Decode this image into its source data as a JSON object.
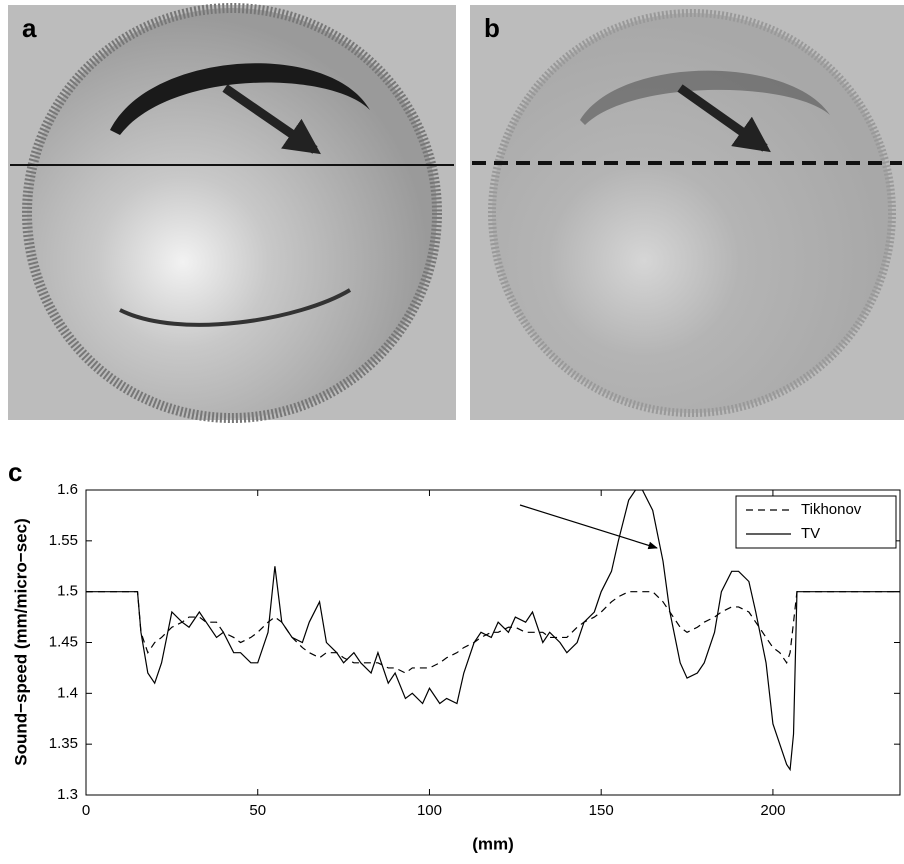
{
  "panel_labels": [
    "a",
    "b",
    "c"
  ],
  "chart_data": {
    "type": "line",
    "xlabel": "(mm)",
    "ylabel": "Sound−speed (mm/micro−sec)",
    "x": [
      0,
      15,
      16,
      18,
      20,
      22,
      25,
      28,
      30,
      33,
      35,
      38,
      40,
      43,
      45,
      48,
      50,
      53,
      55,
      57,
      60,
      63,
      65,
      68,
      70,
      73,
      75,
      78,
      80,
      83,
      85,
      88,
      90,
      93,
      95,
      98,
      100,
      103,
      105,
      108,
      110,
      113,
      115,
      118,
      120,
      123,
      125,
      128,
      130,
      133,
      135,
      138,
      140,
      143,
      145,
      148,
      150,
      153,
      155,
      158,
      160,
      162,
      165,
      168,
      170,
      173,
      175,
      178,
      180,
      183,
      185,
      188,
      190,
      193,
      195,
      198,
      200,
      202,
      204,
      205,
      206,
      207,
      237
    ],
    "series": [
      {
        "name": "Tikhonov",
        "color": "#000000",
        "style": "dashed",
        "values": [
          1.5,
          1.5,
          1.46,
          1.44,
          1.45,
          1.455,
          1.465,
          1.47,
          1.475,
          1.475,
          1.47,
          1.47,
          1.46,
          1.455,
          1.45,
          1.455,
          1.46,
          1.47,
          1.475,
          1.47,
          1.455,
          1.445,
          1.44,
          1.435,
          1.44,
          1.44,
          1.435,
          1.43,
          1.43,
          1.43,
          1.43,
          1.425,
          1.425,
          1.42,
          1.425,
          1.425,
          1.425,
          1.43,
          1.435,
          1.44,
          1.445,
          1.45,
          1.455,
          1.46,
          1.46,
          1.465,
          1.465,
          1.46,
          1.46,
          1.46,
          1.455,
          1.455,
          1.455,
          1.465,
          1.47,
          1.475,
          1.48,
          1.49,
          1.495,
          1.5,
          1.5,
          1.5,
          1.5,
          1.49,
          1.48,
          1.465,
          1.46,
          1.465,
          1.47,
          1.475,
          1.48,
          1.485,
          1.485,
          1.48,
          1.47,
          1.455,
          1.445,
          1.44,
          1.43,
          1.44,
          1.47,
          1.5,
          1.5
        ]
      },
      {
        "name": "TV",
        "color": "#000000",
        "style": "solid",
        "values": [
          1.5,
          1.5,
          1.46,
          1.42,
          1.41,
          1.43,
          1.48,
          1.47,
          1.465,
          1.48,
          1.47,
          1.455,
          1.46,
          1.44,
          1.44,
          1.43,
          1.43,
          1.46,
          1.525,
          1.47,
          1.455,
          1.45,
          1.47,
          1.49,
          1.45,
          1.44,
          1.43,
          1.44,
          1.43,
          1.42,
          1.44,
          1.41,
          1.42,
          1.395,
          1.4,
          1.39,
          1.405,
          1.39,
          1.395,
          1.39,
          1.42,
          1.45,
          1.46,
          1.455,
          1.47,
          1.46,
          1.475,
          1.47,
          1.48,
          1.45,
          1.46,
          1.45,
          1.44,
          1.45,
          1.47,
          1.48,
          1.5,
          1.52,
          1.55,
          1.59,
          1.6,
          1.6,
          1.58,
          1.53,
          1.48,
          1.43,
          1.415,
          1.42,
          1.43,
          1.46,
          1.5,
          1.52,
          1.52,
          1.51,
          1.48,
          1.43,
          1.37,
          1.35,
          1.33,
          1.325,
          1.36,
          1.5,
          1.5
        ]
      }
    ],
    "xlim": [
      0,
      237
    ],
    "ylim": [
      1.3,
      1.6
    ],
    "xticks": [
      0,
      50,
      100,
      150,
      200
    ],
    "yticks": [
      1.3,
      1.35,
      1.4,
      1.45,
      1.5,
      1.55,
      1.6
    ],
    "legend": "upper right"
  }
}
